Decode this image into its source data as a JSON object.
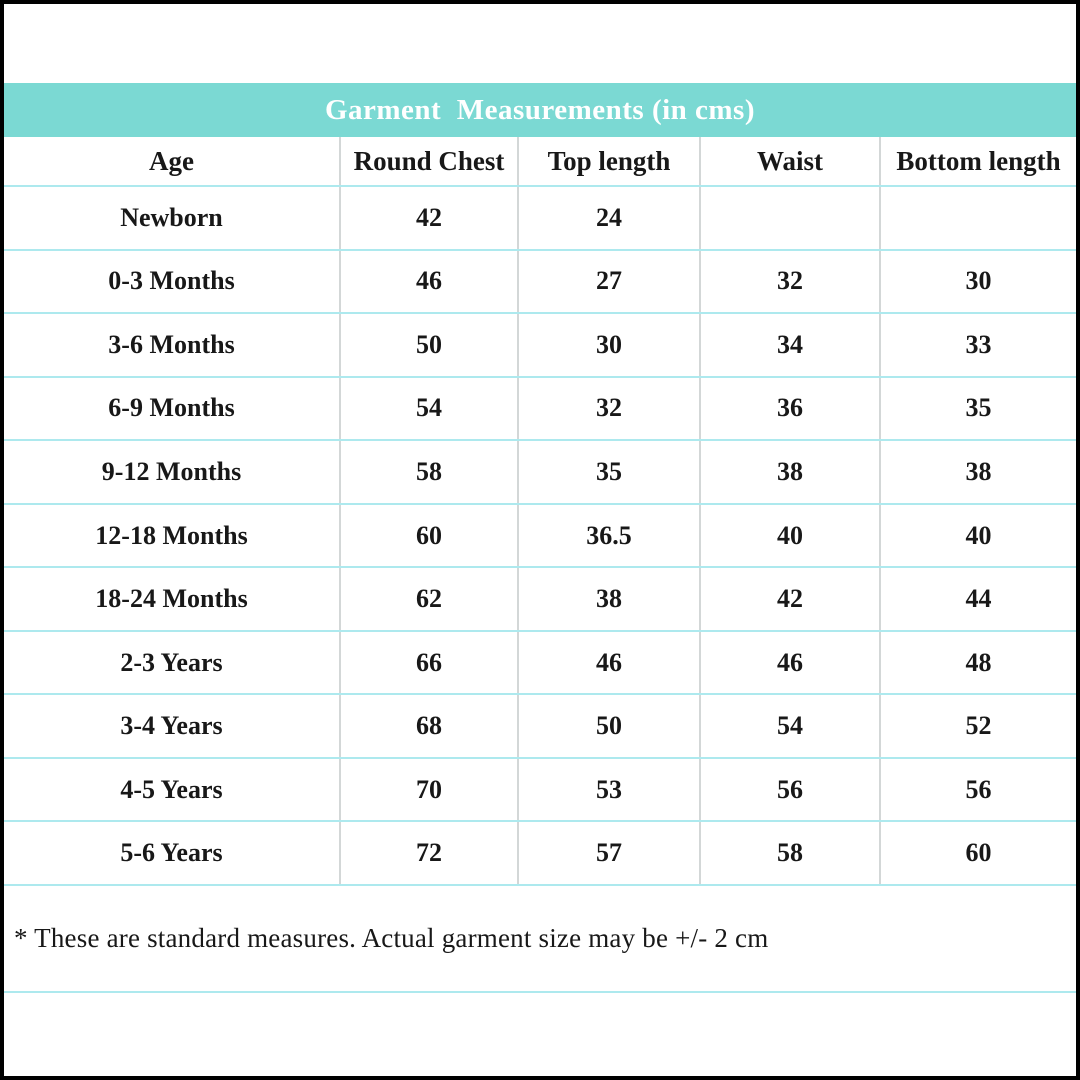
{
  "colors": {
    "title_bar_bg": "#7BD9D3",
    "title_text": "#FFFFFF",
    "row_divider": "#ADE9EE",
    "column_divider": "#D3D7D7",
    "page_border": "#000000",
    "body_text": "#181818"
  },
  "footnote": "* These are standard measures. Actual garment size may be +/- 2 cm",
  "chart_data": {
    "type": "table",
    "title": "Garment  Measurements (in cms)",
    "columns": [
      "Age",
      "Round Chest",
      "Top length",
      "Waist",
      "Bottom length"
    ],
    "rows": [
      [
        "Newborn",
        "42",
        "24",
        "",
        ""
      ],
      [
        "0-3 Months",
        "46",
        "27",
        "32",
        "30"
      ],
      [
        "3-6 Months",
        "50",
        "30",
        "34",
        "33"
      ],
      [
        "6-9 Months",
        "54",
        "32",
        "36",
        "35"
      ],
      [
        "9-12 Months",
        "58",
        "35",
        "38",
        "38"
      ],
      [
        "12-18 Months",
        "60",
        "36.5",
        "40",
        "40"
      ],
      [
        "18-24 Months",
        "62",
        "38",
        "42",
        "44"
      ],
      [
        "2-3 Years",
        "66",
        "46",
        "46",
        "48"
      ],
      [
        "3-4 Years",
        "68",
        "50",
        "54",
        "52"
      ],
      [
        "4-5 Years",
        "70",
        "53",
        "56",
        "56"
      ],
      [
        "5-6 Years",
        "72",
        "57",
        "58",
        "60"
      ]
    ],
    "units": "cms"
  }
}
